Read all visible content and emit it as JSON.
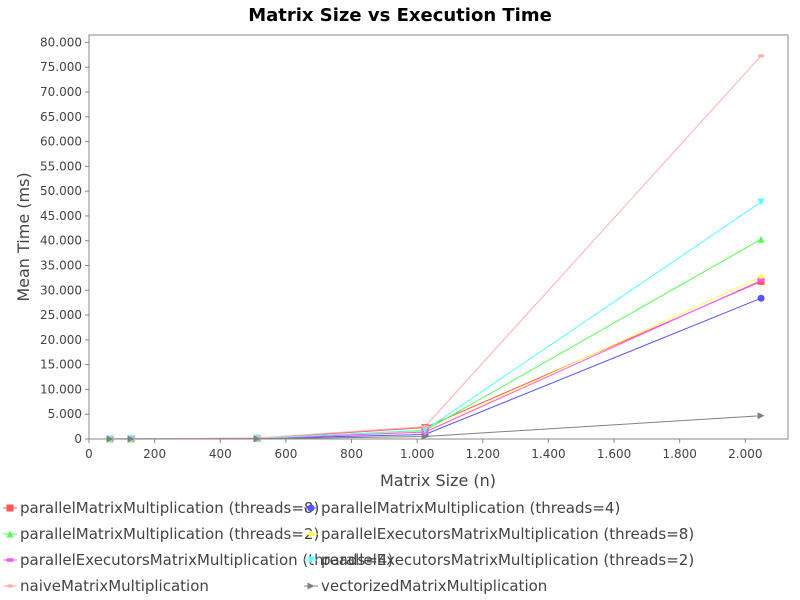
{
  "chart_data": {
    "type": "line",
    "title": "Matrix Size vs Execution Time",
    "xlabel": "Matrix Size (n)",
    "ylabel": "Mean Time (ms)",
    "xlim": [
      0,
      2130
    ],
    "ylim": [
      0,
      81500
    ],
    "x_ticks": [
      "0",
      "200",
      "400",
      "600",
      "800",
      "1.000",
      "1.200",
      "1.400",
      "1.600",
      "1.800",
      "2.000"
    ],
    "x_tick_values": [
      0,
      200,
      400,
      600,
      800,
      1000,
      1200,
      1400,
      1600,
      1800,
      2000
    ],
    "y_ticks": [
      "0",
      "5.000",
      "10.000",
      "15.000",
      "20.000",
      "25.000",
      "30.000",
      "35.000",
      "40.000",
      "45.000",
      "50.000",
      "55.000",
      "60.000",
      "65.000",
      "70.000",
      "75.000",
      "80.000"
    ],
    "y_tick_values": [
      0,
      5000,
      10000,
      15000,
      20000,
      25000,
      30000,
      35000,
      40000,
      45000,
      50000,
      55000,
      60000,
      65000,
      70000,
      75000,
      80000
    ],
    "grid": false,
    "legend_position": "bottom",
    "x": [
      64,
      128,
      512,
      1024,
      2048
    ],
    "series": [
      {
        "name": "parallelMatrixMultiplication (threads=8)",
        "color": "#ff5555",
        "marker": "square",
        "values": [
          10,
          20,
          150,
          2300,
          31800
        ]
      },
      {
        "name": "parallelMatrixMultiplication (threads=4)",
        "color": "#5555ff",
        "marker": "circle",
        "values": [
          5,
          15,
          100,
          900,
          28400
        ]
      },
      {
        "name": "parallelMatrixMultiplication (threads=2)",
        "color": "#55ff55",
        "marker": "triangle-up",
        "values": [
          5,
          15,
          120,
          1700,
          40300
        ]
      },
      {
        "name": "parallelExecutorsMatrixMultiplication (threads=8)",
        "color": "#ffff55",
        "marker": "diamond",
        "values": [
          5,
          15,
          120,
          1500,
          32700
        ]
      },
      {
        "name": "parallelExecutorsMatrixMultiplication (threads=4)",
        "color": "#ff55ff",
        "marker": "rect-h",
        "values": [
          5,
          15,
          110,
          1400,
          32000
        ]
      },
      {
        "name": "parallelExecutorsMatrixMultiplication (threads=2)",
        "color": "#55ffff",
        "marker": "triangle-down",
        "values": [
          5,
          15,
          130,
          1800,
          47800
        ]
      },
      {
        "name": "naiveMatrixMultiplication",
        "color": "#ffafaf",
        "marker": "ellipse",
        "values": [
          5,
          20,
          200,
          2500,
          77300
        ]
      },
      {
        "name": "vectorizedMatrixMultiplication",
        "color": "#808080",
        "marker": "triangle-right",
        "values": [
          5,
          10,
          40,
          500,
          4700
        ]
      }
    ]
  }
}
